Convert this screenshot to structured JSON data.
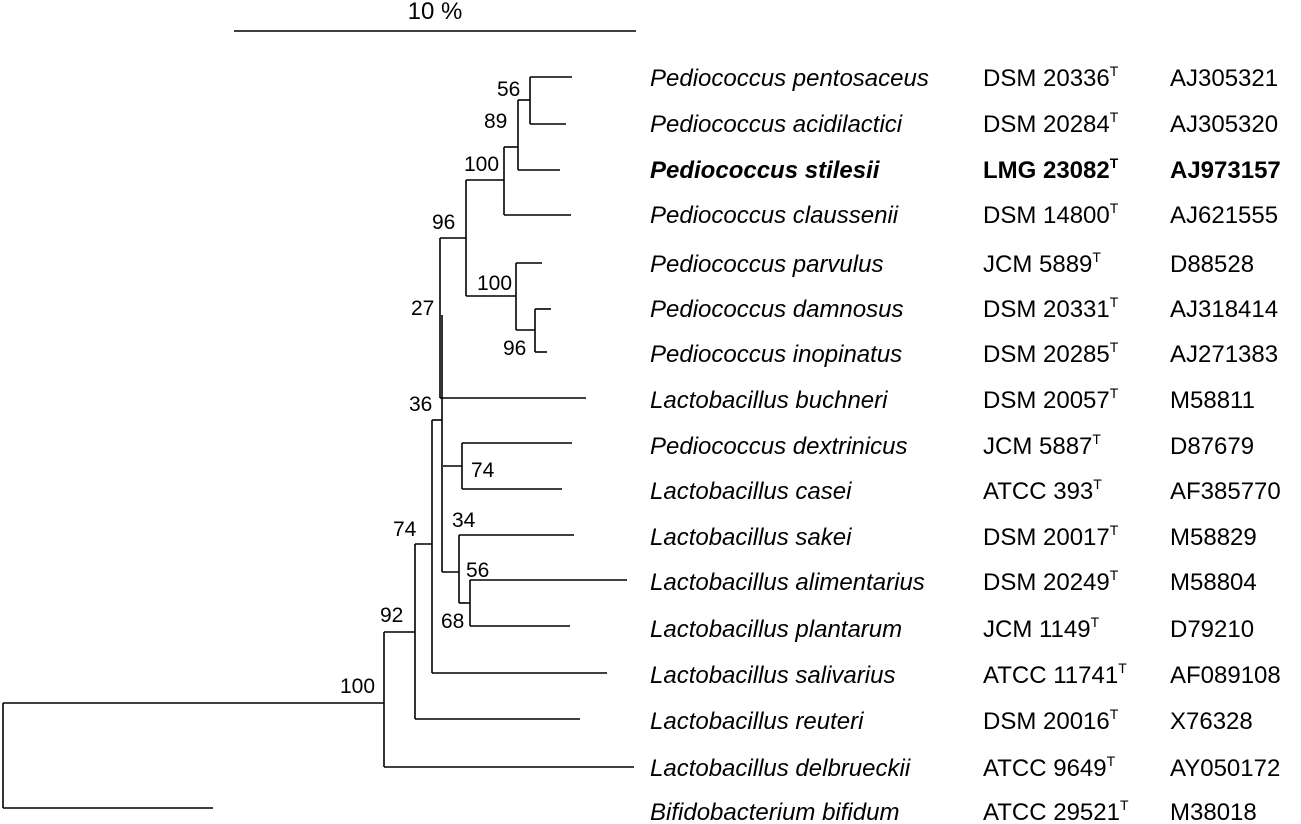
{
  "scale_bar": {
    "label": "10 %"
  },
  "type_strain_mark": "T",
  "taxa": [
    {
      "id": "pentosaceus",
      "species": "Pediococcus pentosaceus",
      "strain": "DSM 20336",
      "type": true,
      "accession": "AJ305321",
      "highlight": false
    },
    {
      "id": "acidilactici",
      "species": "Pediococcus acidilactici",
      "strain": "DSM 20284",
      "type": true,
      "accession": "AJ305320",
      "highlight": false
    },
    {
      "id": "stilesii",
      "species": "Pediococcus stilesii",
      "strain": "LMG 23082",
      "type": true,
      "accession": "AJ973157",
      "highlight": true
    },
    {
      "id": "claussenii",
      "species": "Pediococcus claussenii",
      "strain": "DSM 14800",
      "type": true,
      "accession": "AJ621555",
      "highlight": false
    },
    {
      "id": "parvulus",
      "species": "Pediococcus parvulus",
      "strain": "JCM 5889",
      "type": true,
      "accession": "D88528",
      "highlight": false
    },
    {
      "id": "damnosus",
      "species": "Pediococcus damnosus",
      "strain": "DSM 20331",
      "type": true,
      "accession": "AJ318414",
      "highlight": false
    },
    {
      "id": "inopinatus",
      "species": "Pediococcus inopinatus",
      "strain": "DSM 20285",
      "type": true,
      "accession": "AJ271383",
      "highlight": false
    },
    {
      "id": "buchneri",
      "species": "Lactobacillus buchneri",
      "strain": "DSM 20057",
      "type": true,
      "accession": "M58811",
      "highlight": false
    },
    {
      "id": "dextrinicus",
      "species": "Pediococcus dextrinicus",
      "strain": "JCM 5887",
      "type": true,
      "accession": "D87679",
      "highlight": false
    },
    {
      "id": "casei",
      "species": "Lactobacillus casei",
      "strain": "ATCC 393",
      "type": true,
      "accession": "AF385770",
      "highlight": false
    },
    {
      "id": "sakei",
      "species": "Lactobacillus sakei",
      "strain": "DSM 20017",
      "type": true,
      "accession": "M58829",
      "highlight": false
    },
    {
      "id": "alimentarius",
      "species": "Lactobacillus alimentarius",
      "strain": "DSM 20249",
      "type": true,
      "accession": "M58804",
      "highlight": false
    },
    {
      "id": "plantarum",
      "species": "Lactobacillus plantarum",
      "strain": "JCM 1149",
      "type": true,
      "accession": "D79210",
      "highlight": false
    },
    {
      "id": "salivarius",
      "species": "Lactobacillus salivarius",
      "strain": "ATCC 11741",
      "type": true,
      "accession": "AF089108",
      "highlight": false
    },
    {
      "id": "reuteri",
      "species": "Lactobacillus reuteri",
      "strain": "DSM 20016",
      "type": true,
      "accession": "X76328",
      "highlight": false
    },
    {
      "id": "delbrueckii",
      "species": "Lactobacillus delbrueckii",
      "strain": "ATCC 9649",
      "type": true,
      "accession": "AY050172",
      "highlight": false
    },
    {
      "id": "bifidum",
      "species": "Bifidobacterium bifidum",
      "strain": "ATCC 29521",
      "type": true,
      "accession": "M38018",
      "highlight": false
    }
  ],
  "bootstrap_values": {
    "root": "100",
    "n92": "92",
    "n74": "74",
    "n36": "36",
    "n27": "27",
    "n96a": "96",
    "n100a": "100",
    "n89": "89",
    "n56a": "56",
    "n100b": "100",
    "n96b": "96",
    "n34": "34",
    "n74b": "74",
    "n56b": "56",
    "n68": "68"
  }
}
